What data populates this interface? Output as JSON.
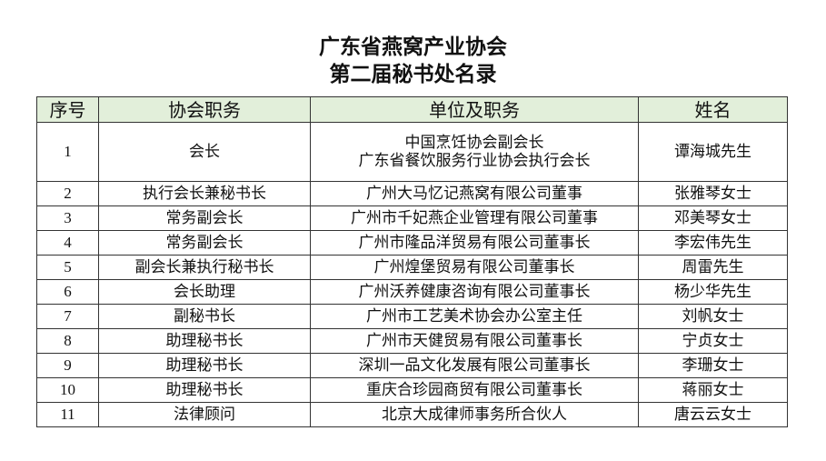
{
  "title": {
    "line1": "广东省燕窝产业协会",
    "line2": "第二届秘书处名录"
  },
  "header_bg": "#e2efda",
  "headers": [
    "序号",
    "协会职务",
    "单位及职务",
    "姓名"
  ],
  "rows": [
    {
      "no": "1",
      "role": "会长",
      "unit_lines": [
        "中国烹饪协会副会长",
        "广东省餐饮服务行业协会执行会长"
      ],
      "name": "谭海城先生"
    },
    {
      "no": "2",
      "role": "执行会长兼秘书长",
      "unit": "广州大马忆记燕窝有限公司董事",
      "name": "张雅琴女士"
    },
    {
      "no": "3",
      "role": "常务副会长",
      "unit": "广州市千妃燕企业管理有限公司董事",
      "name": "邓美琴女士"
    },
    {
      "no": "4",
      "role": "常务副会长",
      "unit": "广州市隆品洋贸易有限公司董事长",
      "name": "李宏伟先生"
    },
    {
      "no": "5",
      "role": "副会长兼执行秘书长",
      "unit": "广州煌堡贸易有限公司董事长",
      "name": "周雷先生"
    },
    {
      "no": "6",
      "role": "会长助理",
      "unit": "广州沃养健康咨询有限公司董事长",
      "name": "杨少华先生"
    },
    {
      "no": "7",
      "role": "副秘书长",
      "unit": "广州市工艺美术协会办公室主任",
      "name": "刘帆女士"
    },
    {
      "no": "8",
      "role": "助理秘书长",
      "unit": "广州市天健贸易有限公司董事长",
      "name": "宁贞女士"
    },
    {
      "no": "9",
      "role": "助理秘书长",
      "unit": "深圳一品文化发展有限公司董事长",
      "name": "李珊女士"
    },
    {
      "no": "10",
      "role": "助理秘书长",
      "unit": "重庆合珍园商贸有限公司董事长",
      "name": "蒋丽女士"
    },
    {
      "no": "11",
      "role": "法律顾问",
      "unit": "北京大成律师事务所合伙人",
      "name": "唐云云女士"
    }
  ]
}
